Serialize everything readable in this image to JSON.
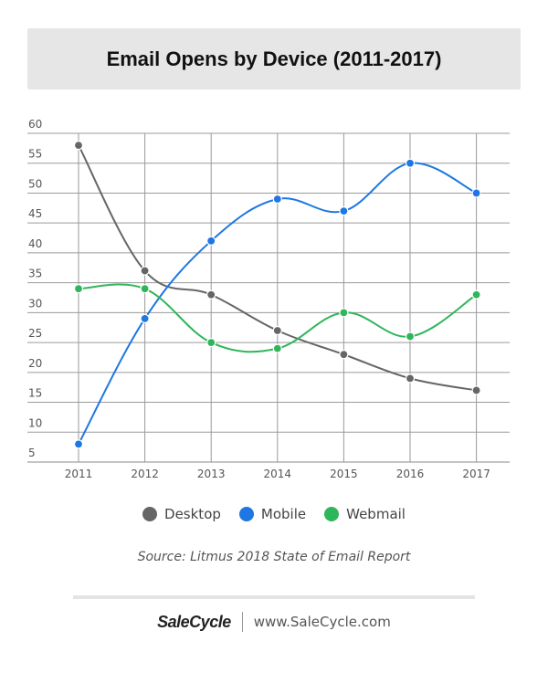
{
  "chart_data": {
    "type": "line",
    "title": "Email Opens by Device (2011-2017)",
    "xlabel": "",
    "ylabel": "",
    "categories": [
      "2011",
      "2012",
      "2013",
      "2014",
      "2015",
      "2016",
      "2017"
    ],
    "y_ticks": [
      5,
      10,
      15,
      20,
      25,
      30,
      35,
      40,
      45,
      50,
      55,
      60
    ],
    "ylim": [
      5,
      60
    ],
    "grid": true,
    "legend_position": "bottom",
    "series": [
      {
        "name": "Desktop",
        "color": "#666666",
        "values": [
          58,
          37,
          33,
          27,
          23,
          19,
          17
        ]
      },
      {
        "name": "Mobile",
        "color": "#1e77e3",
        "values": [
          8,
          29,
          42,
          49,
          47,
          55,
          50
        ]
      },
      {
        "name": "Webmail",
        "color": "#2fb65a",
        "values": [
          34,
          34,
          25,
          24,
          30,
          26,
          33
        ]
      }
    ]
  },
  "source": "Source: Litmus 2018 State of Email Report",
  "brand": {
    "logo": "SaleCycle",
    "url": "www.SaleCycle.com"
  }
}
